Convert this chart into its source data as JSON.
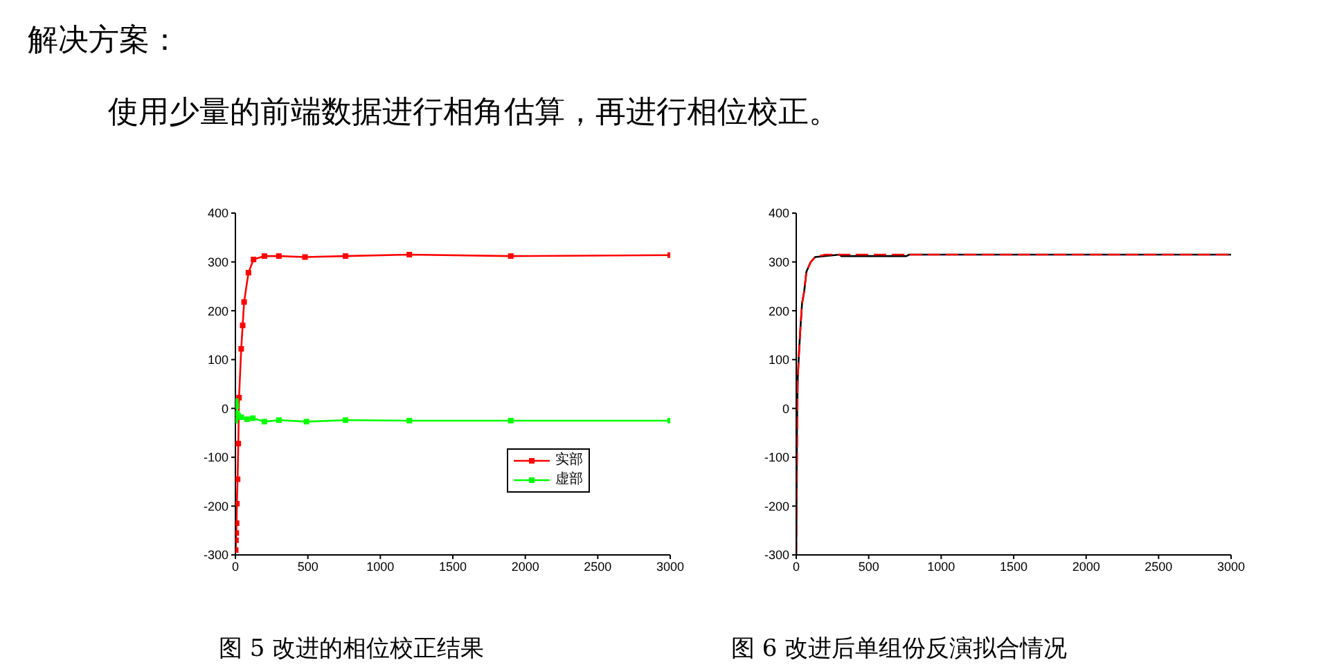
{
  "chart_data": [
    {
      "type": "line",
      "title": "图 5 改进的相位校正结果",
      "annotations": [
        "解决方案：",
        "使用少量的前端数据进行相角估算，再进行相位校正。"
      ],
      "xlim": [
        0,
        3000
      ],
      "xticks": [
        0,
        500,
        1000,
        1500,
        2000,
        2500,
        3000
      ],
      "ylim": [
        -300,
        400
      ],
      "yticks": [
        -300,
        -200,
        -100,
        0,
        100,
        200,
        300,
        400
      ],
      "grid": false,
      "legend": "bottom right",
      "marker": "square",
      "series": [
        {
          "name": "实部",
          "color": "#ff0000",
          "x": [
            2,
            4,
            6,
            8,
            10,
            15,
            20,
            25,
            40,
            50,
            60,
            90,
            125,
            200,
            300,
            480,
            760,
            1200,
            1900,
            3000
          ],
          "values": [
            -290,
            -270,
            -255,
            -235,
            -195,
            -145,
            -72,
            22,
            122,
            170,
            218,
            278,
            305,
            312,
            312,
            310,
            312,
            315,
            312,
            314
          ]
        },
        {
          "name": "虚部",
          "color": "#00ff00",
          "x": [
            0,
            3,
            6,
            10,
            20,
            40,
            80,
            120,
            200,
            300,
            490,
            760,
            1200,
            1900,
            3000
          ],
          "values": [
            -25,
            15,
            5,
            -10,
            -15,
            -18,
            -22,
            -20,
            -27,
            -24,
            -27,
            -24,
            -25,
            -25,
            -25
          ]
        }
      ]
    },
    {
      "type": "line",
      "title": "图 6 改进后单组份反演拟合情况",
      "xlim": [
        0,
        3000
      ],
      "xticks": [
        0,
        500,
        1000,
        1500,
        2000,
        2500,
        3000
      ],
      "ylim": [
        -300,
        400
      ],
      "yticks": [
        -300,
        -200,
        -100,
        0,
        100,
        200,
        300,
        400
      ],
      "grid": false,
      "legend": false,
      "marker": "none",
      "series": [
        {
          "color": "#000000",
          "line_style": "solid",
          "x": [
            0,
            5,
            10,
            20,
            30,
            40,
            55,
            70,
            100,
            130,
            300,
            310,
            760,
            780,
            3000
          ],
          "values": [
            -300,
            -40,
            60,
            120,
            170,
            215,
            240,
            280,
            300,
            310,
            315,
            312,
            312,
            315,
            315
          ]
        },
        {
          "color": "#ff0000",
          "line_style": "dashed",
          "x": [
            0,
            10,
            20,
            30,
            40,
            55,
            70,
            100,
            130,
            200,
            3000
          ],
          "values": [
            -300,
            60,
            120,
            170,
            215,
            240,
            280,
            300,
            310,
            315,
            315
          ]
        }
      ]
    }
  ]
}
